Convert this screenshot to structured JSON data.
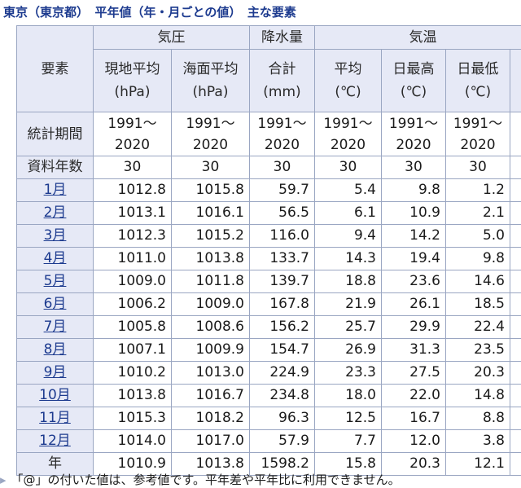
{
  "title": "東京（東京都）　平年値（年・月ごとの値）　主な要素",
  "table": {
    "element_label": "要素",
    "groups": [
      "気圧",
      "降水量",
      "気温"
    ],
    "sub_headers": [
      {
        "l1": "現地平均",
        "l2": "(hPa)"
      },
      {
        "l1": "海面平均",
        "l2": "(hPa)"
      },
      {
        "l1": "合計",
        "l2": "(mm)"
      },
      {
        "l1": "平均",
        "l2": "(℃)"
      },
      {
        "l1": "日最高",
        "l2": "(℃)"
      },
      {
        "l1": "日最低",
        "l2": "(℃)"
      }
    ],
    "period_label": "統計期間",
    "period": {
      "from": "1991～",
      "to": "2020"
    },
    "years_label": "資料年数",
    "years": "30",
    "rows": [
      {
        "label": "1月",
        "cells": [
          "1012.8",
          "1015.8",
          "59.7",
          "5.4",
          "9.8",
          "1.2"
        ]
      },
      {
        "label": "2月",
        "cells": [
          "1013.1",
          "1016.1",
          "56.5",
          "6.1",
          "10.9",
          "2.1"
        ]
      },
      {
        "label": "3月",
        "cells": [
          "1012.3",
          "1015.2",
          "116.0",
          "9.4",
          "14.2",
          "5.0"
        ]
      },
      {
        "label": "4月",
        "cells": [
          "1011.0",
          "1013.8",
          "133.7",
          "14.3",
          "19.4",
          "9.8"
        ]
      },
      {
        "label": "5月",
        "cells": [
          "1009.0",
          "1011.8",
          "139.7",
          "18.8",
          "23.6",
          "14.6"
        ]
      },
      {
        "label": "6月",
        "cells": [
          "1006.2",
          "1009.0",
          "167.8",
          "21.9",
          "26.1",
          "18.5"
        ]
      },
      {
        "label": "7月",
        "cells": [
          "1005.8",
          "1008.6",
          "156.2",
          "25.7",
          "29.9",
          "22.4"
        ]
      },
      {
        "label": "8月",
        "cells": [
          "1007.1",
          "1009.9",
          "154.7",
          "26.9",
          "31.3",
          "23.5"
        ]
      },
      {
        "label": "9月",
        "cells": [
          "1010.2",
          "1013.0",
          "224.9",
          "23.3",
          "27.5",
          "20.3"
        ]
      },
      {
        "label": "10月",
        "cells": [
          "1013.8",
          "1016.7",
          "234.8",
          "18.0",
          "22.0",
          "14.8"
        ]
      },
      {
        "label": "11月",
        "cells": [
          "1015.3",
          "1018.2",
          "96.3",
          "12.5",
          "16.7",
          "8.8"
        ]
      },
      {
        "label": "12月",
        "cells": [
          "1014.0",
          "1017.0",
          "57.9",
          "7.7",
          "12.0",
          "3.8"
        ]
      }
    ],
    "total_row": {
      "label": "年",
      "cells": [
        "1010.9",
        "1013.8",
        "1598.2",
        "15.8",
        "20.3",
        "12.1"
      ]
    }
  },
  "note": "「@」の付いた値は、参考値です。平年差や平年比に利用できません。",
  "colors": {
    "header_bg": "#e6e9f6",
    "border": "#9aa6c2",
    "link": "#1d3b8f",
    "title": "#1d3b8f"
  }
}
